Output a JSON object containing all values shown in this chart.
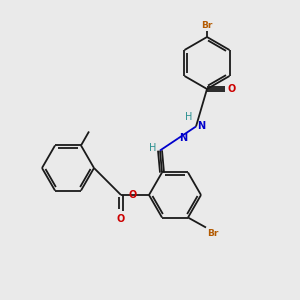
{
  "background_color": "#eaeaea",
  "bond_color": "#1a1a1a",
  "atom_colors": {
    "Br": "#b35a00",
    "O": "#cc0000",
    "N": "#0000cc",
    "H": "#2a9090",
    "C": "#1a1a1a"
  },
  "figsize": [
    3.0,
    3.0
  ],
  "dpi": 100,
  "lw": 1.3
}
